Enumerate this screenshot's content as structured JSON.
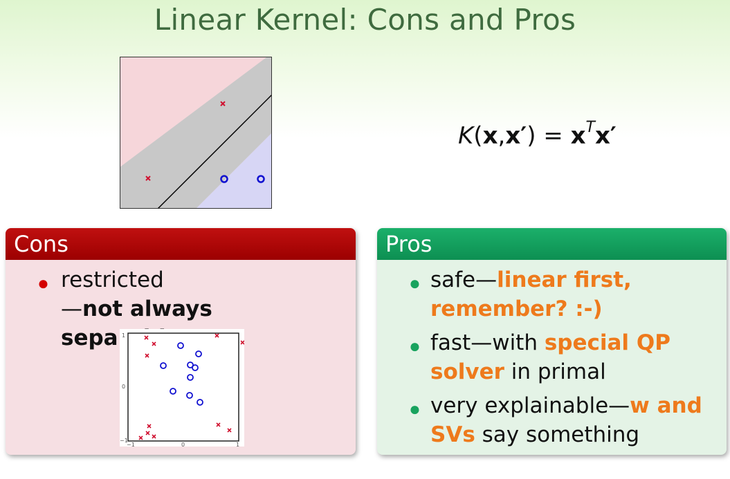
{
  "title": "Linear Kernel: Cons and Pros",
  "formula": {
    "K": "K",
    "open": "(",
    "x1": "x",
    "comma": ",",
    "x2": "x′",
    "close": ")",
    "eq": " = ",
    "x3": "x",
    "T": "T",
    "x4": "x′"
  },
  "cons": {
    "heading": "Cons",
    "items": [
      {
        "line1": "restricted",
        "line2_prefix": "—",
        "line2_strong": "not always separable?!"
      }
    ],
    "figure": {
      "tick_y": [
        "1",
        "0",
        "−1"
      ],
      "tick_x": [
        "−1",
        "0",
        "1"
      ]
    }
  },
  "pros": {
    "heading": "Pros",
    "items": [
      {
        "a": "safe—",
        "b": "linear first,",
        "c": "remember? :-)"
      },
      {
        "a": "fast—with ",
        "b": "special QP",
        "c": "solver",
        "d": " in primal"
      },
      {
        "a": "very explainable—",
        "b": "w and",
        "c": "SVs",
        "d": " say something"
      }
    ]
  },
  "colors": {
    "cons_header": "#a80000",
    "cons_body": "#f6dfe3",
    "pros_header": "#12995a",
    "pros_body": "#e4f3e6",
    "highlight": "#ee7a1c",
    "title": "#3f6b3f"
  }
}
